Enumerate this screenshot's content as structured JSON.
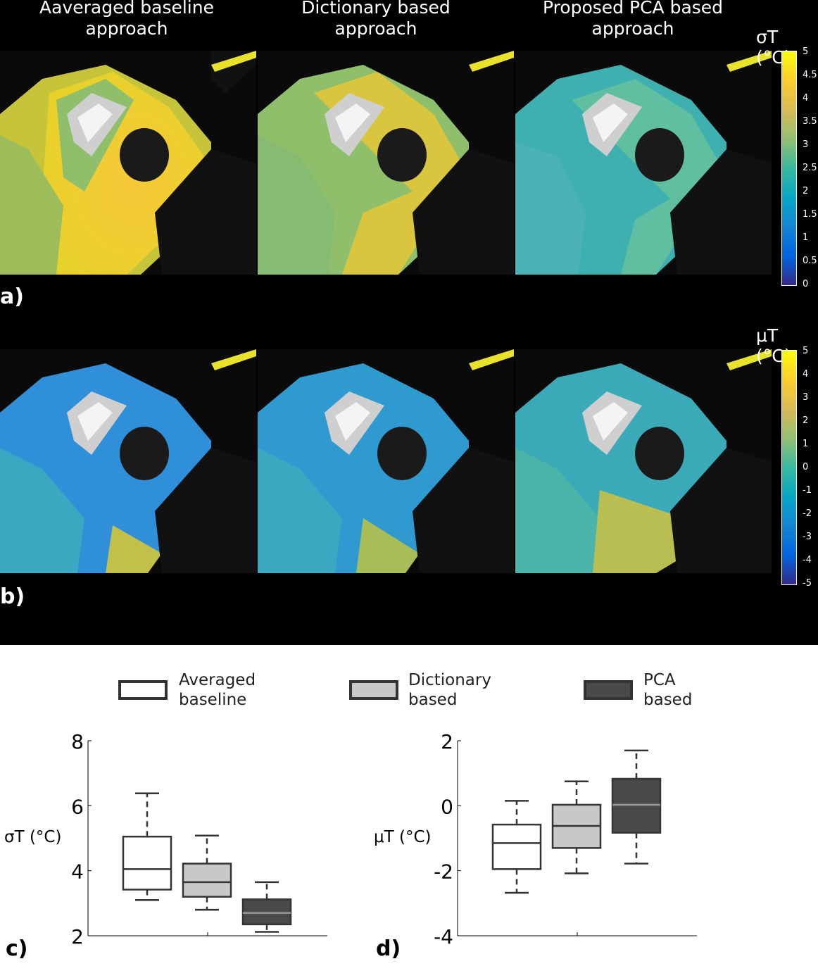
{
  "row_titles": [
    [
      "Aaveraged baseline",
      "approach"
    ],
    [
      "Dictionary based",
      "approach"
    ],
    [
      "Proposed PCA based",
      "approach"
    ]
  ],
  "panel_a": {
    "letter": "a)",
    "colorbar": {
      "label": "σT (°C)",
      "ticks": [
        "5",
        "4.5",
        "4",
        "3.5",
        "3",
        "2.5",
        "2",
        "1.5",
        "1",
        "0.5",
        "0"
      ]
    }
  },
  "panel_b": {
    "letter": "b)",
    "colorbar": {
      "label": "μT (°C)",
      "ticks": [
        "5",
        "4",
        "3",
        "2",
        "1",
        "0",
        "-1",
        "-2",
        "-3",
        "-4",
        "-5"
      ]
    }
  },
  "legend": [
    {
      "line1": "Averaged",
      "line2": "baseline",
      "fill": "#ffffff"
    },
    {
      "line1": "Dictionary",
      "line2": "based",
      "fill": "#c8c8c8"
    },
    {
      "line1": "PCA",
      "line2": "based",
      "fill": "#4a4a4a"
    }
  ],
  "colormap": "parula",
  "chart_data": [
    {
      "type": "box",
      "panel": "c)",
      "ylabel": "σT (°C)",
      "ylim": [
        2,
        8
      ],
      "yticks": [
        "2",
        "4",
        "6",
        "8"
      ],
      "series": [
        {
          "name": "Averaged baseline",
          "whisker_low": 3.1,
          "q1": 3.42,
          "median": 4.05,
          "q3": 5.05,
          "whisker_high": 6.38,
          "fill": "#ffffff"
        },
        {
          "name": "Dictionary based",
          "whisker_low": 2.8,
          "q1": 3.2,
          "median": 3.65,
          "q3": 4.22,
          "whisker_high": 5.08,
          "fill": "#c8c8c8"
        },
        {
          "name": "PCA based",
          "whisker_low": 2.12,
          "q1": 2.35,
          "median": 2.7,
          "q3": 3.12,
          "whisker_high": 3.65,
          "fill": "#4a4a4a"
        }
      ]
    },
    {
      "type": "box",
      "panel": "d)",
      "ylabel": "μT (°C)",
      "ylim": [
        -4,
        2
      ],
      "yticks": [
        "-4",
        "-2",
        "0",
        "2"
      ],
      "series": [
        {
          "name": "Averaged baseline",
          "whisker_low": -2.68,
          "q1": -1.95,
          "median": -1.15,
          "q3": -0.58,
          "whisker_high": 0.15,
          "fill": "#ffffff"
        },
        {
          "name": "Dictionary based",
          "whisker_low": -2.08,
          "q1": -1.3,
          "median": -0.62,
          "q3": 0.03,
          "whisker_high": 0.75,
          "fill": "#c8c8c8"
        },
        {
          "name": "PCA based",
          "whisker_low": -1.78,
          "q1": -0.83,
          "median": 0.03,
          "q3": 0.83,
          "whisker_high": 1.7,
          "fill": "#4a4a4a"
        }
      ]
    }
  ]
}
